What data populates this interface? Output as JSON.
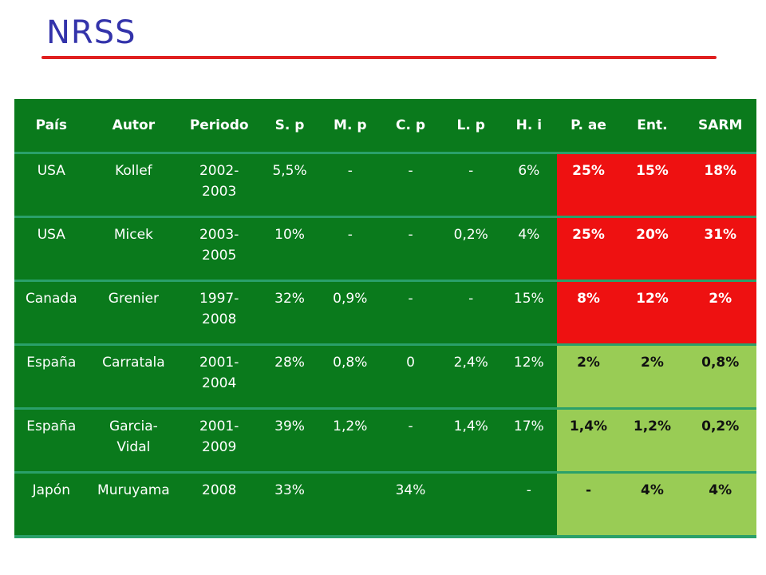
{
  "title": "NRSS",
  "table": {
    "headers": [
      "País",
      "Autor",
      "Periodo",
      "S. p",
      "M. p",
      "C. p",
      "L. p",
      "H. i",
      "P. ae",
      "Ent.",
      "SARM"
    ],
    "rows": [
      {
        "cells": [
          "USA",
          "Kollef",
          "2002-\n2003",
          "5,5%",
          "-",
          "-",
          "-",
          "6%",
          "25%",
          "15%",
          "18%"
        ],
        "tone": "red"
      },
      {
        "cells": [
          "USA",
          "Micek",
          "2003-\n2005",
          "10%",
          "-",
          "-",
          "0,2%",
          "4%",
          "25%",
          "20%",
          "31%"
        ],
        "tone": "red"
      },
      {
        "cells": [
          "Canada",
          "Grenier",
          "1997-\n2008",
          "32%",
          "0,9%",
          "-",
          "-",
          "15%",
          "8%",
          "12%",
          "2%"
        ],
        "tone": "red"
      },
      {
        "cells": [
          "España",
          "Carratala",
          "2001-\n2004",
          "28%",
          "0,8%",
          "0",
          "2,4%",
          "12%",
          "2%",
          "2%",
          "0,8%"
        ],
        "tone": "lime"
      },
      {
        "cells": [
          "España",
          "Garcia-\nVidal",
          "2001-\n2009",
          "39%",
          "1,2%",
          "-",
          "1,4%",
          "17%",
          "1,4%",
          "1,2%",
          "0,2%"
        ],
        "tone": "lime"
      },
      {
        "cells": [
          "Japón",
          "Muruyama",
          "2008",
          "33%",
          "",
          "34%",
          "",
          "-",
          "-",
          "4%",
          "4%"
        ],
        "tone": "lime"
      }
    ]
  },
  "colors": {
    "title": "#3333aa",
    "rule": "#e02020",
    "table_green": "#0a7a1c",
    "highlight_red": "#ee1111",
    "highlight_lime": "#99cc55",
    "row_divider": "#2aa06a"
  }
}
